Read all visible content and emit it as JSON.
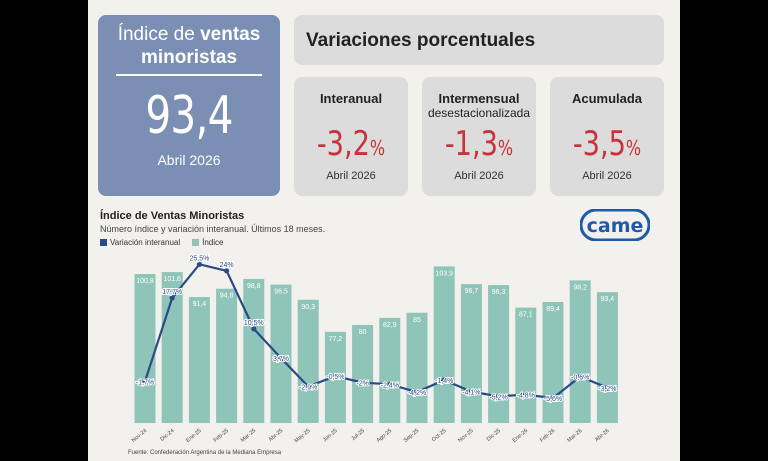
{
  "header": {
    "title_part1": "Índice de ",
    "title_bold": "ventas minoristas",
    "value": "93,4",
    "date": "Abril 2026"
  },
  "variations": {
    "title": "Variaciones porcentuales",
    "cards": [
      {
        "label": "Interanual",
        "sublabel": "",
        "value": "-3,2",
        "unit": "%",
        "date": "Abril 2026"
      },
      {
        "label": "Intermensual",
        "sublabel": "desestacionalizada",
        "value": "-1,3",
        "unit": "%",
        "date": "Abril 2026"
      },
      {
        "label": "Acumulada",
        "sublabel": "",
        "value": "-3,5",
        "unit": "%",
        "date": "Abril 2026"
      }
    ]
  },
  "chart_data": {
    "type": "bar",
    "title": "Índice de Ventas Minoristas",
    "subtitle": "Número índice y variación interanual. Últimos 18 meses.",
    "categories": [
      "Nov-24",
      "Dic-24",
      "Ene-25",
      "Feb-25",
      "Mar-25",
      "Abr-25",
      "May-25",
      "Jun-25",
      "Jul-25",
      "Ago-25",
      "Sep-25",
      "Oct-25",
      "Nov-25",
      "Dic-25",
      "Ene-26",
      "Feb-26",
      "Mar-26",
      "Abr-26"
    ],
    "series": [
      {
        "name": "Índice",
        "kind": "bar",
        "color": "#8fc4b8",
        "values": [
          100.8,
          101.6,
          91.4,
          94.8,
          98.8,
          96.5,
          90.3,
          77.2,
          80,
          82.9,
          85,
          103.9,
          96.7,
          96.3,
          87.1,
          89.4,
          98.2,
          93.4
        ],
        "labels": [
          "100,8",
          "101,6",
          "91,4",
          "94,8",
          "98,8",
          "96,5",
          "90,3",
          "77,2",
          "80",
          "82,9",
          "85",
          "103,9",
          "96,7",
          "96,3",
          "87,1",
          "89,4",
          "98,2",
          "93,4"
        ]
      },
      {
        "name": "Variación interanual",
        "kind": "line",
        "color": "#2b4a86",
        "values": [
          -1.7,
          17.7,
          25.5,
          24,
          10.5,
          3.7,
          -2.9,
          -0.5,
          -2,
          -2.4,
          -4.2,
          -1.4,
          -4.1,
          -5.2,
          -4.8,
          -5.6,
          -0.6,
          -3.2
        ],
        "labels": [
          "-1,7%",
          "17,7%",
          "25,5%",
          "24%",
          "10,5%",
          "3,7%",
          "-2,9%",
          "-0,5%",
          "-2%",
          "-2,4%",
          "-4,2%",
          "-1,4%",
          "-4,1%",
          "-5,2%",
          "-4,8%",
          "-5,6%",
          "-0,6%",
          "-3,2%"
        ]
      }
    ],
    "legend_position": "top-left",
    "grid": false
  },
  "logo": {
    "text": "came",
    "color": "#1f5aa8"
  },
  "source": "Fuente: Confederación Argentina de la Mediana Empresa"
}
